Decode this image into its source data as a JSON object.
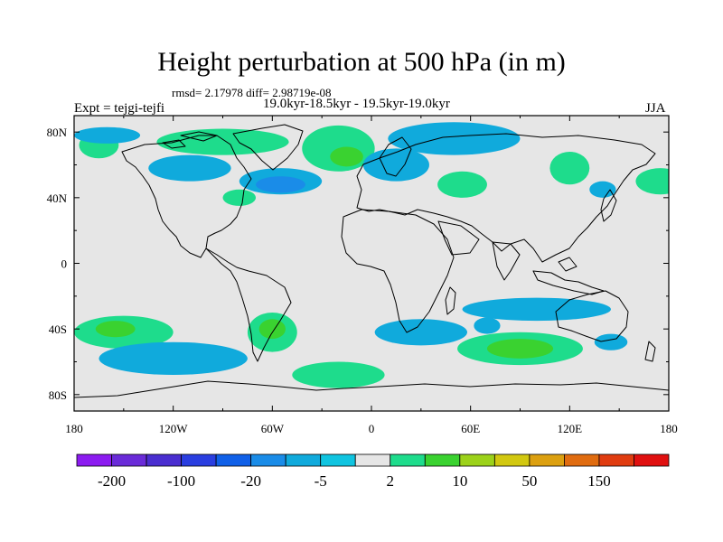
{
  "chart_data": {
    "type": "heatmap",
    "title": "Height perturbation at 500 hPa (in m)",
    "subtitle": "rmsd= 2.17978 diff= 2.98719e-08",
    "left_label": "Expt = tejgi-tejfi",
    "center_label": "19.0kyr-18.5kyr - 19.5kyr-19.0kyr",
    "right_label": "JJA",
    "x_range": [
      -180,
      180
    ],
    "y_range": [
      -90,
      90
    ],
    "x_ticks": [
      {
        "value": -180,
        "label": "180"
      },
      {
        "value": -120,
        "label": "120W"
      },
      {
        "value": -60,
        "label": "60W"
      },
      {
        "value": 0,
        "label": "0"
      },
      {
        "value": 60,
        "label": "60E"
      },
      {
        "value": 120,
        "label": "120E"
      },
      {
        "value": 180,
        "label": "180"
      }
    ],
    "y_ticks": [
      {
        "value": 80,
        "label": "80N"
      },
      {
        "value": 40,
        "label": "40N"
      },
      {
        "value": 0,
        "label": "0"
      },
      {
        "value": -40,
        "label": "40S"
      },
      {
        "value": -80,
        "label": "80S"
      }
    ],
    "colorbar": {
      "colors": [
        "#8c1cf0",
        "#6a2bd8",
        "#4a2ed0",
        "#2a3ee0",
        "#1060e8",
        "#1a8ce8",
        "#10aadc",
        "#10c4e0",
        "#e6e6e6",
        "#1edc8c",
        "#3ad230",
        "#9cd21a",
        "#d2c810",
        "#dca010",
        "#e06c10",
        "#e03c10",
        "#e01010"
      ],
      "tick_labels": [
        "-200",
        "-100",
        "-20",
        "-5",
        "2",
        "10",
        "50",
        "150"
      ]
    },
    "regions": [
      {
        "name": "arctic-north-america-positive",
        "lon": -90,
        "lat": 74,
        "rx": 40,
        "ry": 8,
        "level": 9
      },
      {
        "name": "greenland-positive",
        "lon": -20,
        "lat": 70,
        "rx": 22,
        "ry": 14,
        "level": 9
      },
      {
        "name": "greenland-positive-core",
        "lon": -15,
        "lat": 65,
        "rx": 10,
        "ry": 6,
        "level": 10
      },
      {
        "name": "north-pacific-positive",
        "lon": -165,
        "lat": 72,
        "rx": 12,
        "ry": 8,
        "level": 9
      },
      {
        "name": "north-atlantic-negative",
        "lon": -55,
        "lat": 50,
        "rx": 25,
        "ry": 8,
        "level": 6
      },
      {
        "name": "north-atlantic-negative-core",
        "lon": -55,
        "lat": 48,
        "rx": 15,
        "ry": 5,
        "level": 5
      },
      {
        "name": "canada-negative",
        "lon": -110,
        "lat": 58,
        "rx": 25,
        "ry": 8,
        "level": 6
      },
      {
        "name": "arctic-negative",
        "lon": -160,
        "lat": 78,
        "rx": 20,
        "ry": 5,
        "level": 6
      },
      {
        "name": "eastern-usa-positive",
        "lon": -80,
        "lat": 40,
        "rx": 10,
        "ry": 5,
        "level": 9
      },
      {
        "name": "europe-negative",
        "lon": 15,
        "lat": 60,
        "rx": 20,
        "ry": 10,
        "level": 6
      },
      {
        "name": "siberia-negative",
        "lon": 50,
        "lat": 76,
        "rx": 40,
        "ry": 10,
        "level": 6
      },
      {
        "name": "central-asia-positive",
        "lon": 55,
        "lat": 48,
        "rx": 15,
        "ry": 8,
        "level": 9
      },
      {
        "name": "east-asia-positive",
        "lon": 120,
        "lat": 58,
        "rx": 12,
        "ry": 10,
        "level": 9
      },
      {
        "name": "west-pacific-negative",
        "lon": 140,
        "lat": 45,
        "rx": 8,
        "ry": 5,
        "level": 6
      },
      {
        "name": "north-pacific-east-positive",
        "lon": 175,
        "lat": 50,
        "rx": 15,
        "ry": 8,
        "level": 9
      },
      {
        "name": "south-pacific-positive",
        "lon": -150,
        "lat": -42,
        "rx": 30,
        "ry": 10,
        "level": 9
      },
      {
        "name": "south-pacific-positive-core",
        "lon": -155,
        "lat": -40,
        "rx": 12,
        "ry": 5,
        "level": 10
      },
      {
        "name": "south-pacific-negative",
        "lon": -120,
        "lat": -58,
        "rx": 45,
        "ry": 10,
        "level": 6
      },
      {
        "name": "south-america-positive",
        "lon": -60,
        "lat": -42,
        "rx": 15,
        "ry": 12,
        "level": 9
      },
      {
        "name": "south-america-positive-core",
        "lon": -60,
        "lat": -40,
        "rx": 8,
        "ry": 6,
        "level": 10
      },
      {
        "name": "south-atlantic-positive",
        "lon": -20,
        "lat": -68,
        "rx": 28,
        "ry": 8,
        "level": 9
      },
      {
        "name": "south-indian-negative",
        "lon": 30,
        "lat": -42,
        "rx": 28,
        "ry": 8,
        "level": 6
      },
      {
        "name": "indian-ocean-positive",
        "lon": 90,
        "lat": -52,
        "rx": 38,
        "ry": 10,
        "level": 9
      },
      {
        "name": "indian-ocean-positive-core",
        "lon": 90,
        "lat": -52,
        "rx": 20,
        "ry": 6,
        "level": 10
      },
      {
        "name": "australia-negative",
        "lon": 100,
        "lat": -28,
        "rx": 45,
        "ry": 7,
        "level": 6
      },
      {
        "name": "tasman-negative",
        "lon": 145,
        "lat": -48,
        "rx": 10,
        "ry": 5,
        "level": 6
      },
      {
        "name": "west-of-australia-negative",
        "lon": 70,
        "lat": -38,
        "rx": 8,
        "ry": 5,
        "level": 6
      }
    ]
  }
}
